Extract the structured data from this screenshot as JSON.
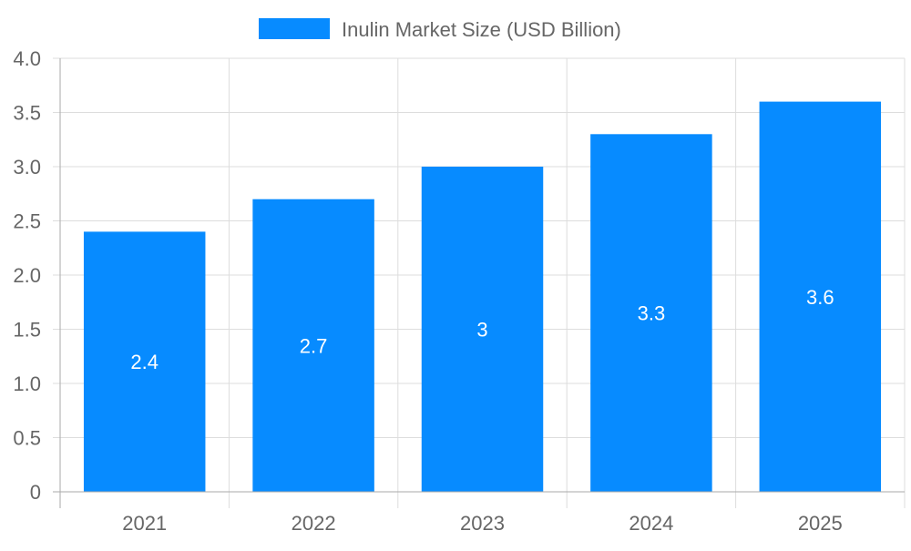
{
  "chart_data": {
    "type": "bar",
    "title": "",
    "xlabel": "",
    "ylabel": "",
    "categories": [
      "2021",
      "2022",
      "2023",
      "2024",
      "2025"
    ],
    "series": [
      {
        "name": "Inulin Market Size (USD Billion)",
        "values": [
          2.4,
          2.7,
          3,
          3.3,
          3.6
        ],
        "color": "#078bff"
      }
    ],
    "data_labels": [
      "2.4",
      "2.7",
      "3",
      "3.3",
      "3.6"
    ],
    "ylim": [
      0,
      4
    ],
    "yticks": [
      "0",
      "0.5",
      "1.0",
      "1.5",
      "2.0",
      "2.5",
      "3.0",
      "3.5",
      "4.0"
    ],
    "grid": true,
    "legend_position": "top"
  }
}
